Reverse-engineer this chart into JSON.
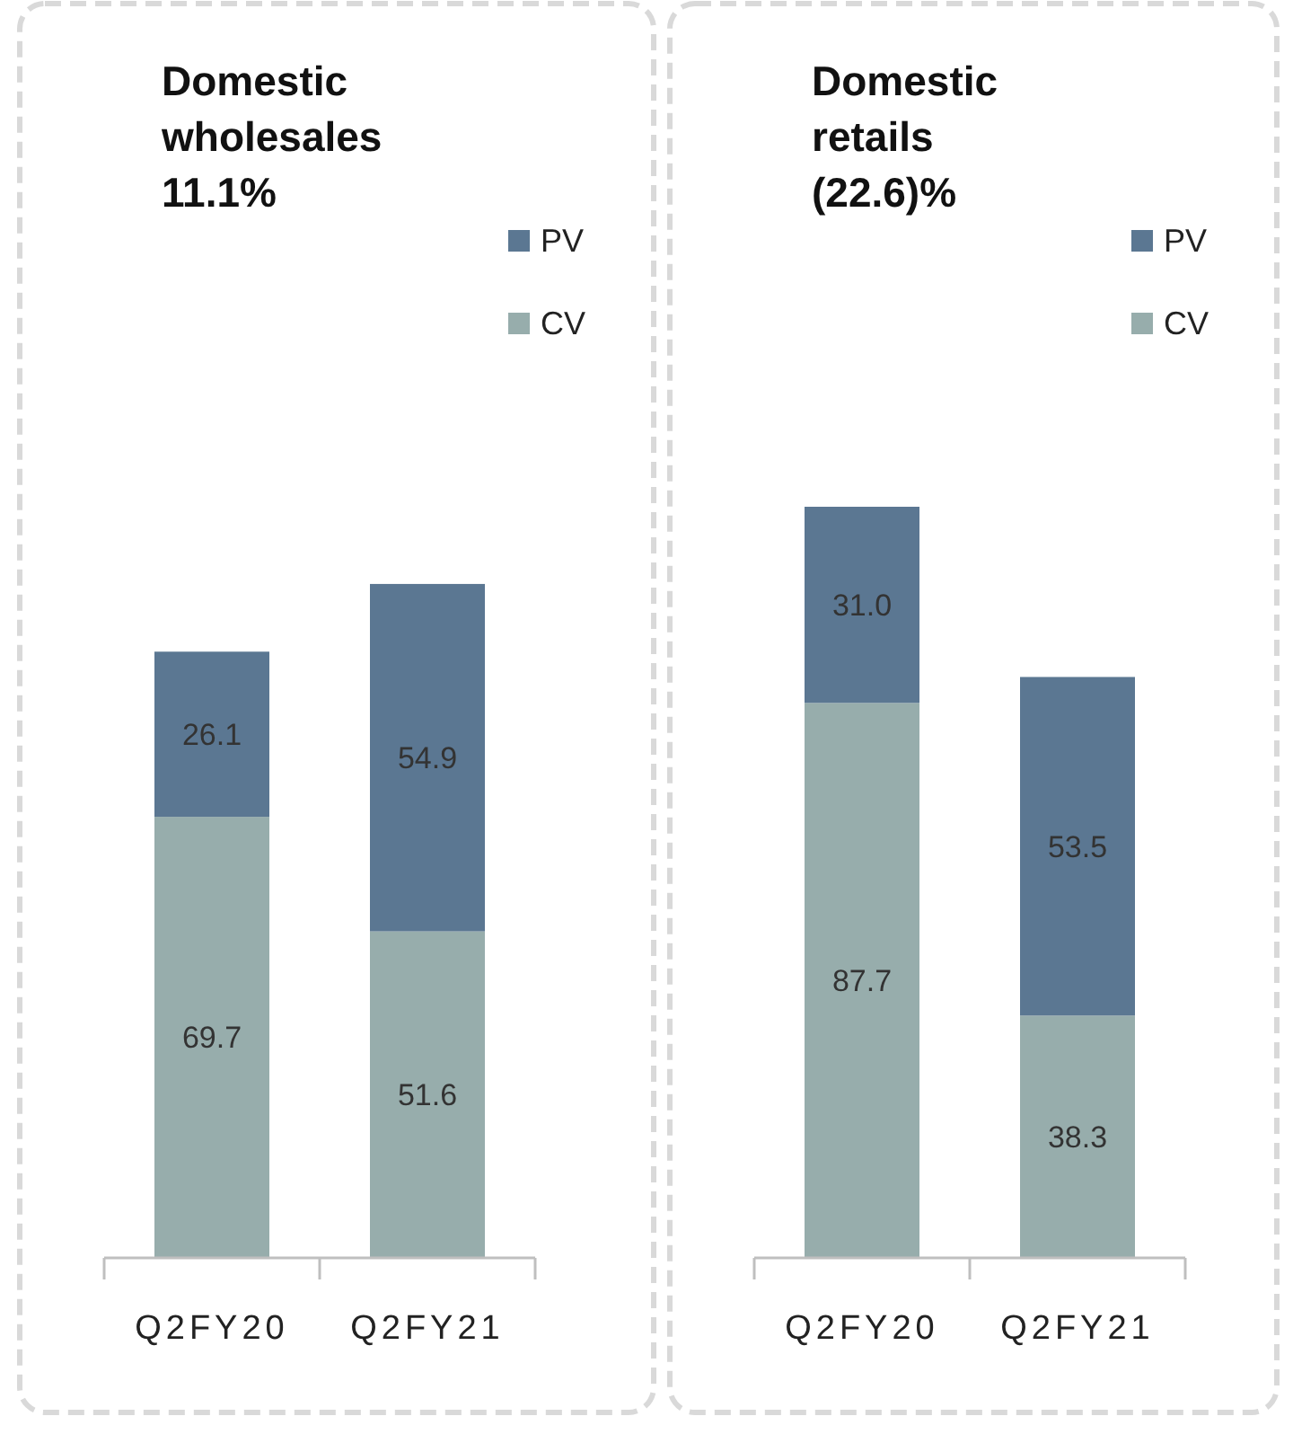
{
  "chart_data": [
    {
      "type": "bar",
      "title": "Domestic wholesales",
      "subtitle": "11.1%",
      "categories": [
        "Q2FY20",
        "Q2FY21"
      ],
      "stacked": true,
      "legend": "top right",
      "series": [
        {
          "name": "CV",
          "color": "#97adac",
          "values": [
            69.7,
            51.6
          ],
          "value_labels": [
            "69.7",
            "51.6"
          ]
        },
        {
          "name": "PV",
          "color": "#5b7792",
          "values": [
            26.1,
            54.9
          ],
          "value_labels": [
            "26.1",
            "54.9"
          ]
        }
      ]
    },
    {
      "type": "bar",
      "title": "Domestic retails",
      "subtitle": "(22.6)%",
      "categories": [
        "Q2FY20",
        "Q2FY21"
      ],
      "stacked": true,
      "legend": "top right",
      "series": [
        {
          "name": "CV",
          "color": "#97adac",
          "values": [
            87.7,
            38.3
          ],
          "value_labels": [
            "87.7",
            "38.3"
          ]
        },
        {
          "name": "PV",
          "color": "#5b7792",
          "values": [
            31.0,
            53.5
          ],
          "value_labels": [
            "31.0",
            "53.5"
          ]
        }
      ]
    }
  ]
}
